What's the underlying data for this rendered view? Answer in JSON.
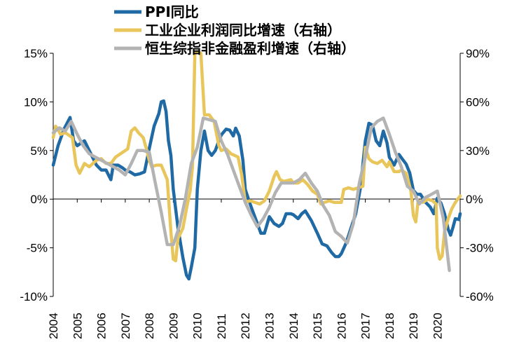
{
  "chart_data": {
    "type": "line",
    "x_start": 2004.0,
    "x_end": 2020.75,
    "xlim": [
      2004.0,
      2020.95
    ],
    "x_tick_labels": [
      "2004",
      "2005",
      "2006",
      "2007",
      "2008",
      "2009",
      "2010",
      "2011",
      "2012",
      "2013",
      "2014",
      "2015",
      "2016",
      "2017",
      "2018",
      "2019",
      "2020"
    ],
    "y_left": {
      "ylim": [
        -10,
        15
      ],
      "ticks": [
        -10,
        -5,
        0,
        5,
        10,
        15
      ],
      "tick_labels": [
        "-10%",
        "-5%",
        "0%",
        "5%",
        "10%",
        "15%"
      ]
    },
    "y_right": {
      "ylim": [
        -60,
        90
      ],
      "ticks": [
        -60,
        -30,
        0,
        30,
        60,
        90
      ],
      "tick_labels": [
        "-60%",
        "-30%",
        "0%",
        "30%",
        "60%",
        "90%"
      ]
    },
    "series": [
      {
        "name": "PPI同比",
        "axis": "left",
        "color": "#1f6aa5",
        "points": [
          [
            2004.0,
            3.5
          ],
          [
            2004.2,
            5.5
          ],
          [
            2004.45,
            7.2
          ],
          [
            2004.7,
            8.4
          ],
          [
            2004.85,
            6.0
          ],
          [
            2005.0,
            5.5
          ],
          [
            2005.3,
            6.0
          ],
          [
            2005.5,
            5.0
          ],
          [
            2005.8,
            3.5
          ],
          [
            2006.0,
            3.0
          ],
          [
            2006.2,
            3.0
          ],
          [
            2006.3,
            2.5
          ],
          [
            2006.4,
            2.0
          ],
          [
            2006.5,
            3.5
          ],
          [
            2006.7,
            3.5
          ],
          [
            2006.9,
            3.2
          ],
          [
            2007.0,
            3.0
          ],
          [
            2007.2,
            2.8
          ],
          [
            2007.4,
            2.5
          ],
          [
            2007.6,
            2.6
          ],
          [
            2007.8,
            2.8
          ],
          [
            2008.0,
            5.2
          ],
          [
            2008.2,
            7.5
          ],
          [
            2008.4,
            8.8
          ],
          [
            2008.5,
            10.0
          ],
          [
            2008.6,
            10.1
          ],
          [
            2008.7,
            9.0
          ],
          [
            2008.8,
            6.0
          ],
          [
            2008.9,
            4.5
          ],
          [
            2009.0,
            1.0
          ],
          [
            2009.2,
            -3.0
          ],
          [
            2009.4,
            -6.0
          ],
          [
            2009.55,
            -7.8
          ],
          [
            2009.65,
            -8.2
          ],
          [
            2009.75,
            -7.0
          ],
          [
            2009.9,
            -5.0
          ],
          [
            2010.0,
            1.0
          ],
          [
            2010.15,
            5.0
          ],
          [
            2010.3,
            7.0
          ],
          [
            2010.45,
            5.0
          ],
          [
            2010.6,
            4.5
          ],
          [
            2010.75,
            5.0
          ],
          [
            2010.9,
            6.0
          ],
          [
            2011.0,
            6.6
          ],
          [
            2011.2,
            7.2
          ],
          [
            2011.35,
            7.1
          ],
          [
            2011.5,
            6.5
          ],
          [
            2011.6,
            7.3
          ],
          [
            2011.75,
            6.5
          ],
          [
            2011.9,
            4.0
          ],
          [
            2012.0,
            1.0
          ],
          [
            2012.2,
            -0.5
          ],
          [
            2012.35,
            -1.5
          ],
          [
            2012.5,
            -2.5
          ],
          [
            2012.65,
            -3.5
          ],
          [
            2012.8,
            -3.5
          ],
          [
            2013.0,
            -1.8
          ],
          [
            2013.2,
            -2.5
          ],
          [
            2013.4,
            -2.8
          ],
          [
            2013.55,
            -2.5
          ],
          [
            2013.7,
            -1.5
          ],
          [
            2013.9,
            -1.5
          ],
          [
            2014.0,
            -1.6
          ],
          [
            2014.2,
            -2.0
          ],
          [
            2014.35,
            -1.5
          ],
          [
            2014.5,
            -1.2
          ],
          [
            2014.75,
            -2.2
          ],
          [
            2015.0,
            -3.5
          ],
          [
            2015.2,
            -4.6
          ],
          [
            2015.4,
            -4.8
          ],
          [
            2015.6,
            -5.5
          ],
          [
            2015.75,
            -5.9
          ],
          [
            2015.9,
            -5.9
          ],
          [
            2016.0,
            -5.6
          ],
          [
            2016.2,
            -4.5
          ],
          [
            2016.4,
            -3.0
          ],
          [
            2016.6,
            -1.5
          ],
          [
            2016.8,
            1.2
          ],
          [
            2017.0,
            6.0
          ],
          [
            2017.15,
            7.8
          ],
          [
            2017.3,
            7.6
          ],
          [
            2017.45,
            6.0
          ],
          [
            2017.6,
            5.5
          ],
          [
            2017.75,
            7.0
          ],
          [
            2017.9,
            5.8
          ],
          [
            2018.0,
            4.3
          ],
          [
            2018.2,
            3.5
          ],
          [
            2018.4,
            4.6
          ],
          [
            2018.55,
            4.1
          ],
          [
            2018.7,
            3.6
          ],
          [
            2018.85,
            2.7
          ],
          [
            2019.0,
            0.9
          ],
          [
            2019.15,
            0.5
          ],
          [
            2019.3,
            0.5
          ],
          [
            2019.5,
            -0.3
          ],
          [
            2019.7,
            -0.8
          ],
          [
            2019.85,
            -1.5
          ],
          [
            2020.0,
            0.1
          ],
          [
            2020.15,
            -0.4
          ],
          [
            2020.3,
            -1.5
          ],
          [
            2020.45,
            -3.1
          ],
          [
            2020.55,
            -3.7
          ],
          [
            2020.65,
            -2.9
          ],
          [
            2020.75,
            -2.0
          ],
          [
            2020.9,
            -2.1
          ],
          [
            2020.95,
            -1.5
          ]
        ]
      },
      {
        "name": "工业企业利润同比增速（右轴）",
        "axis": "right",
        "color": "#e8c65b",
        "points": [
          [
            2004.0,
            38
          ],
          [
            2004.1,
            45
          ],
          [
            2004.2,
            43
          ],
          [
            2004.3,
            40
          ],
          [
            2004.5,
            41
          ],
          [
            2004.8,
            38
          ],
          [
            2004.95,
            21
          ],
          [
            2005.1,
            16
          ],
          [
            2005.3,
            22
          ],
          [
            2005.5,
            20
          ],
          [
            2005.8,
            24
          ],
          [
            2006.0,
            25
          ],
          [
            2006.2,
            22
          ],
          [
            2006.4,
            22
          ],
          [
            2006.6,
            26
          ],
          [
            2006.9,
            29
          ],
          [
            2007.1,
            31
          ],
          [
            2007.25,
            42
          ],
          [
            2007.4,
            44
          ],
          [
            2007.55,
            41
          ],
          [
            2007.75,
            38
          ],
          [
            2007.9,
            30
          ],
          [
            2008.0,
            24
          ],
          [
            2008.1,
            20
          ],
          [
            2008.3,
            21
          ],
          [
            2008.5,
            21
          ],
          [
            2008.75,
            12
          ],
          [
            2008.9,
            -20
          ],
          [
            2009.0,
            -37
          ],
          [
            2009.1,
            -38
          ],
          [
            2009.2,
            -24
          ],
          [
            2009.4,
            -18
          ],
          [
            2009.55,
            -6
          ],
          [
            2009.7,
            5
          ],
          [
            2009.8,
            20
          ],
          [
            2009.9,
            90
          ],
          [
            2010.0,
            91
          ],
          [
            2010.15,
            90
          ],
          [
            2010.3,
            52
          ],
          [
            2010.5,
            52
          ],
          [
            2010.7,
            48
          ],
          [
            2010.9,
            33
          ],
          [
            2011.0,
            30
          ],
          [
            2011.2,
            31
          ],
          [
            2011.4,
            28
          ],
          [
            2011.55,
            27
          ],
          [
            2011.7,
            26
          ],
          [
            2011.85,
            15
          ],
          [
            2012.0,
            -2
          ],
          [
            2012.2,
            -1
          ],
          [
            2012.4,
            -2
          ],
          [
            2012.6,
            -3
          ],
          [
            2012.8,
            -1
          ],
          [
            2013.0,
            5
          ],
          [
            2013.2,
            14
          ],
          [
            2013.3,
            17
          ],
          [
            2013.45,
            12
          ],
          [
            2013.6,
            11
          ],
          [
            2013.9,
            12
          ],
          [
            2014.0,
            10
          ],
          [
            2014.2,
            10
          ],
          [
            2014.4,
            12
          ],
          [
            2014.6,
            9
          ],
          [
            2014.8,
            5
          ],
          [
            2015.0,
            3
          ],
          [
            2015.15,
            -3
          ],
          [
            2015.3,
            -2
          ],
          [
            2015.5,
            -1
          ],
          [
            2015.7,
            -2
          ],
          [
            2015.9,
            -2
          ],
          [
            2016.0,
            -2
          ],
          [
            2016.1,
            6
          ],
          [
            2016.3,
            7
          ],
          [
            2016.5,
            6
          ],
          [
            2016.7,
            7
          ],
          [
            2016.9,
            8
          ],
          [
            2017.0,
            32
          ],
          [
            2017.15,
            25
          ],
          [
            2017.3,
            23
          ],
          [
            2017.5,
            22
          ],
          [
            2017.7,
            24
          ],
          [
            2017.9,
            20
          ],
          [
            2018.0,
            23
          ],
          [
            2018.2,
            17
          ],
          [
            2018.4,
            17
          ],
          [
            2018.5,
            18
          ],
          [
            2018.7,
            16
          ],
          [
            2018.9,
            5
          ],
          [
            2019.0,
            -10
          ],
          [
            2019.1,
            -14
          ],
          [
            2019.2,
            -1
          ],
          [
            2019.4,
            -2
          ],
          [
            2019.6,
            0
          ],
          [
            2019.8,
            -1
          ],
          [
            2019.95,
            -3
          ],
          [
            2020.0,
            -30
          ],
          [
            2020.1,
            -37
          ],
          [
            2020.2,
            -35
          ],
          [
            2020.3,
            -20
          ],
          [
            2020.45,
            -12
          ],
          [
            2020.6,
            -6
          ],
          [
            2020.75,
            -2
          ],
          [
            2020.95,
            2
          ]
        ]
      },
      {
        "name": "恒生综指非金融盈利增速（右轴）",
        "axis": "right",
        "color": "#b3b3b3",
        "points": [
          [
            2004.0,
            41
          ],
          [
            2004.25,
            44
          ],
          [
            2004.5,
            42
          ],
          [
            2004.75,
            48
          ],
          [
            2005.0,
            40
          ],
          [
            2005.25,
            33
          ],
          [
            2005.5,
            28
          ],
          [
            2005.75,
            26
          ],
          [
            2006.0,
            24
          ],
          [
            2006.25,
            22
          ],
          [
            2006.5,
            20
          ],
          [
            2006.75,
            18
          ],
          [
            2007.0,
            15
          ],
          [
            2007.25,
            22
          ],
          [
            2007.5,
            30
          ],
          [
            2007.75,
            30
          ],
          [
            2008.0,
            29
          ],
          [
            2008.25,
            10
          ],
          [
            2008.5,
            -8
          ],
          [
            2008.75,
            -28
          ],
          [
            2009.0,
            -28
          ],
          [
            2009.25,
            -17
          ],
          [
            2009.5,
            0
          ],
          [
            2009.75,
            22
          ],
          [
            2010.0,
            32
          ],
          [
            2010.25,
            50
          ],
          [
            2010.5,
            49
          ],
          [
            2010.75,
            48
          ],
          [
            2011.0,
            36
          ],
          [
            2011.25,
            28
          ],
          [
            2011.5,
            18
          ],
          [
            2011.75,
            8
          ],
          [
            2012.0,
            -2
          ],
          [
            2012.25,
            -10
          ],
          [
            2012.5,
            -17
          ],
          [
            2012.75,
            -12
          ],
          [
            2013.0,
            -5
          ],
          [
            2013.25,
            4
          ],
          [
            2013.5,
            10
          ],
          [
            2013.75,
            10
          ],
          [
            2014.0,
            10
          ],
          [
            2014.25,
            12
          ],
          [
            2014.5,
            16
          ],
          [
            2014.75,
            10
          ],
          [
            2015.0,
            5
          ],
          [
            2015.25,
            -4
          ],
          [
            2015.5,
            -10
          ],
          [
            2015.75,
            -20
          ],
          [
            2016.0,
            -23
          ],
          [
            2016.25,
            -27
          ],
          [
            2016.5,
            -15
          ],
          [
            2016.75,
            10
          ],
          [
            2017.0,
            26
          ],
          [
            2017.25,
            44
          ],
          [
            2017.5,
            48
          ],
          [
            2017.75,
            50
          ],
          [
            2018.0,
            40
          ],
          [
            2018.25,
            29
          ],
          [
            2018.5,
            20
          ],
          [
            2018.75,
            8
          ],
          [
            2019.0,
            5
          ],
          [
            2019.25,
            -3
          ],
          [
            2019.5,
            1
          ],
          [
            2019.75,
            3
          ],
          [
            2020.0,
            5
          ],
          [
            2020.25,
            -12
          ],
          [
            2020.5,
            -44
          ]
        ]
      }
    ],
    "legend": {
      "position": "top-center",
      "entries": [
        "PPI同比",
        "工业企业利润同比增速（右轴）",
        "恒生综指非金融盈利增速（右轴）"
      ]
    }
  }
}
